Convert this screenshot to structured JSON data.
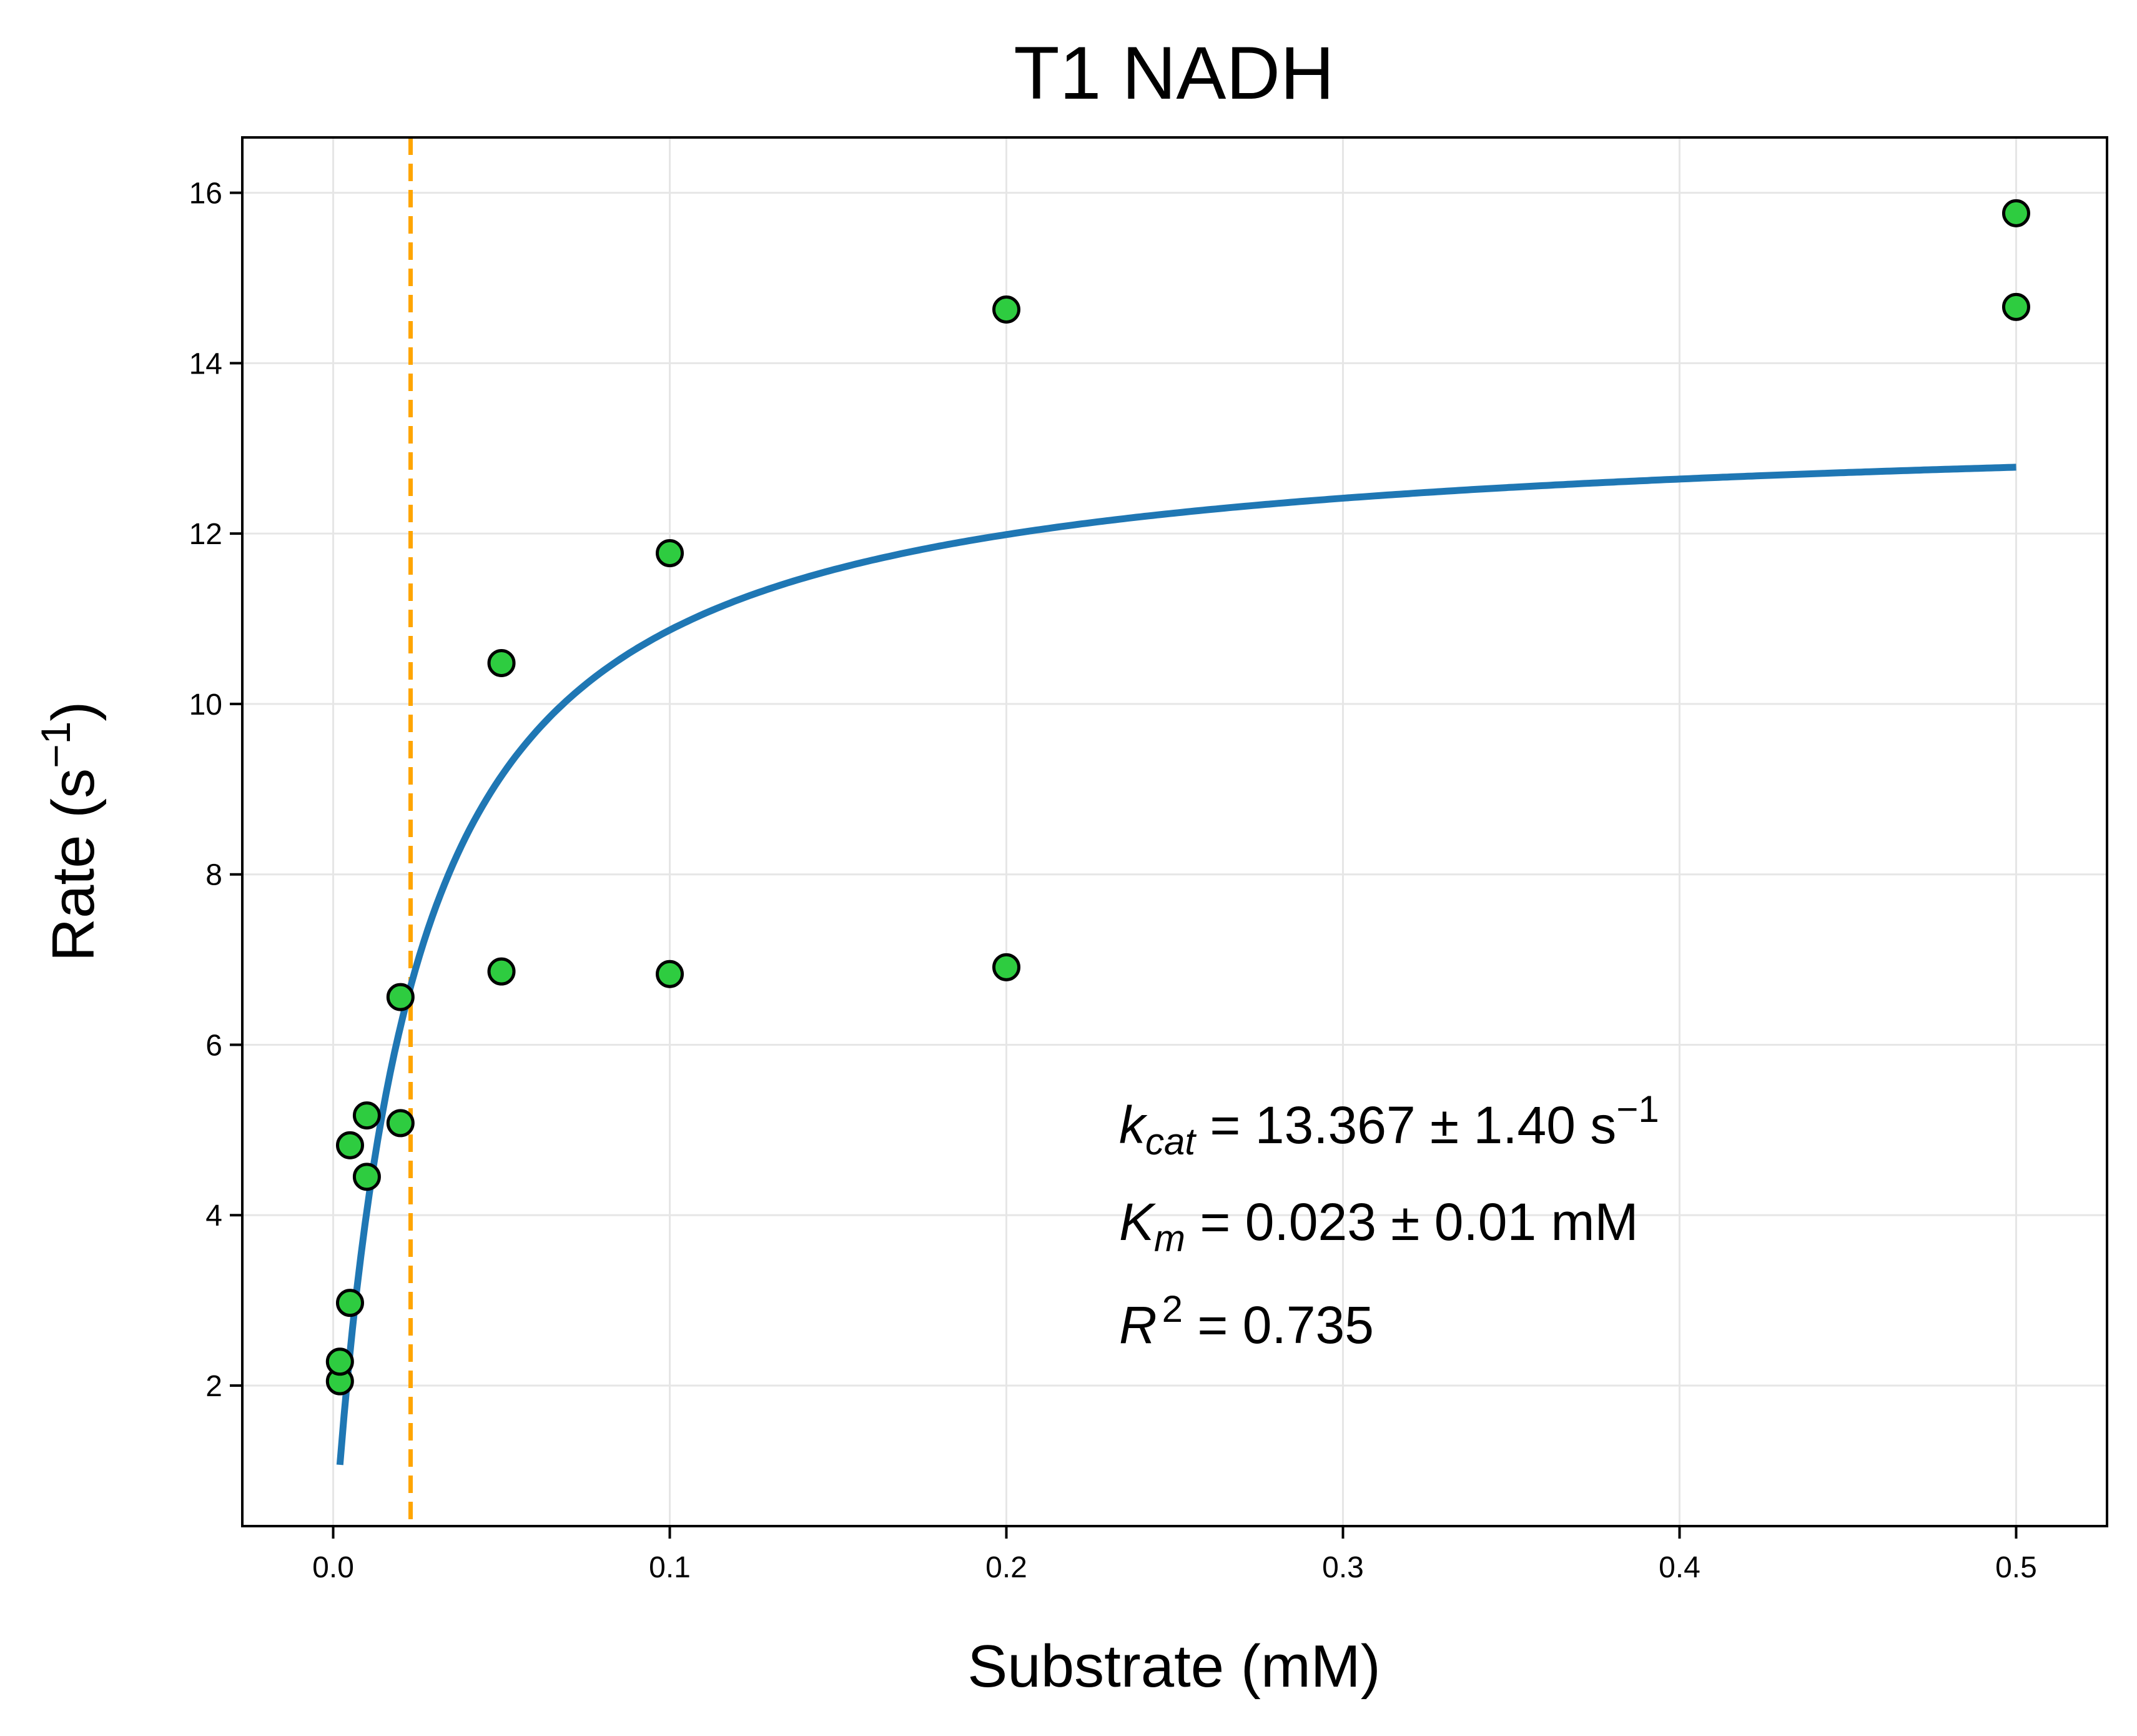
{
  "chart_data": {
    "type": "scatter",
    "title": "T1 NADH",
    "xlabel": "Substrate (mM)",
    "ylabel_main": "Rate (s",
    "ylabel_sup": "−1",
    "ylabel_close": ")",
    "xlim": [
      -0.027,
      0.527
    ],
    "ylim": [
      0.35,
      16.65
    ],
    "xticks": [
      0.0,
      0.1,
      0.2,
      0.3,
      0.4,
      0.5
    ],
    "xtick_labels": [
      "0.0",
      "0.1",
      "0.2",
      "0.3",
      "0.4",
      "0.5"
    ],
    "yticks": [
      2,
      4,
      6,
      8,
      10,
      12,
      14,
      16
    ],
    "ytick_labels": [
      "2",
      "4",
      "6",
      "8",
      "10",
      "12",
      "14",
      "16"
    ],
    "grid": true,
    "points": {
      "color": "#2ecc40",
      "edge_color": "#000000",
      "x": [
        0.002,
        0.002,
        0.005,
        0.005,
        0.01,
        0.01,
        0.02,
        0.02,
        0.05,
        0.05,
        0.1,
        0.1,
        0.2,
        0.2,
        0.5,
        0.5
      ],
      "y": [
        2.05,
        2.28,
        2.97,
        4.82,
        4.45,
        5.17,
        5.08,
        6.56,
        6.86,
        10.48,
        6.83,
        11.77,
        6.91,
        14.63,
        14.66,
        15.76
      ]
    },
    "fit": {
      "model": "michaelis-menten",
      "kcat": 13.367,
      "km": 0.023,
      "x_start": 0.002,
      "x_end": 0.5,
      "color": "#1f77b4"
    },
    "km_line": {
      "x": 0.023,
      "color": "#ffa500",
      "style": "dashed"
    },
    "annotation": {
      "line1_sym": "k",
      "line1_sub": "cat",
      "line1_text": " = 13.367 ± 1.40 s",
      "line1_sup": "−1",
      "line2_sym": "K",
      "line2_sub": "m",
      "line2_text": " = 0.023 ± 0.01 mM",
      "line3_sym": "R",
      "line3_sup": "2",
      "line3_text": " = 0.735"
    }
  }
}
